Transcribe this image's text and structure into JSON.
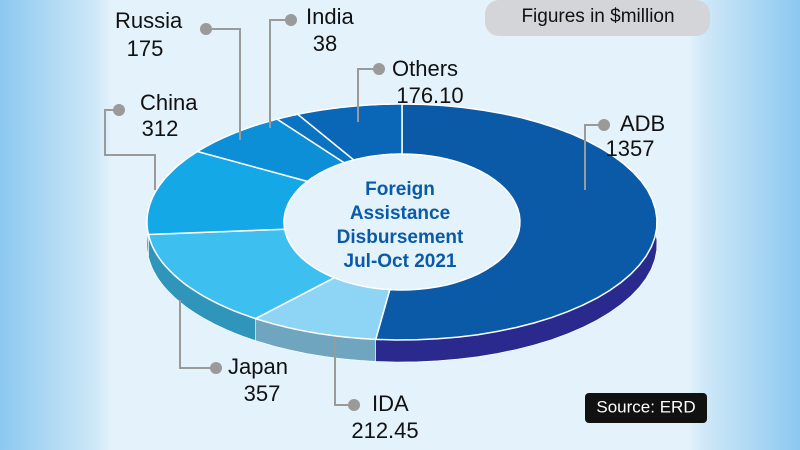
{
  "chart_data": {
    "type": "pie",
    "title": "Foreign Assistance Disbursement Jul-Oct 2021",
    "note": "Figures in $million",
    "source": "Source: ERD",
    "categories": [
      "ADB",
      "IDA",
      "Japan",
      "China",
      "Russia",
      "India",
      "Others"
    ],
    "values": [
      1357,
      212.45,
      357,
      312,
      175,
      38,
      176.1
    ],
    "value_labels": [
      "1357",
      "212.45",
      "357",
      "312",
      "175",
      "38",
      "176.10"
    ],
    "colors": [
      "#0b5aa8",
      "#8ed4f5",
      "#3dbff0",
      "#14a8e6",
      "#0c8fd6",
      "#0b74c2",
      "#0a66b6"
    ]
  }
}
